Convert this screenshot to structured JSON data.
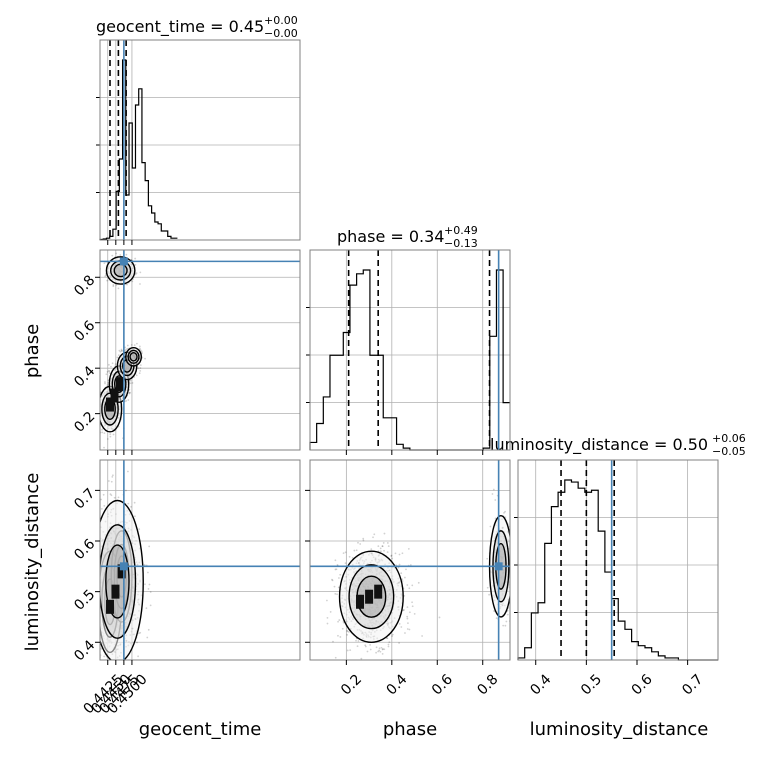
{
  "chart_data": {
    "type": "corner",
    "parameters": [
      {
        "name": "geocent_time",
        "title_main": "geocent_time = 0.45",
        "title_upper": "+0.00",
        "title_lower": "−0.00",
        "range": [
          0.4401,
          0.5021
        ],
        "truth": 0.4475,
        "quantiles": [
          0.4432,
          0.4458,
          0.4482
        ],
        "ticks": [
          0.4425,
          0.445,
          0.4475,
          0.45
        ],
        "tick_labels": [
          "0.4425",
          "0.4450",
          "0.4475",
          "0.4500"
        ],
        "hist_edges_start": 0.4401,
        "hist_bin_width": 0.001,
        "hist_counts": [
          0.3,
          0.6,
          1,
          2,
          6,
          27,
          45,
          100,
          25,
          65,
          40,
          75,
          84,
          43,
          33,
          19,
          15,
          10,
          9,
          5,
          5,
          2,
          1,
          1
        ]
      },
      {
        "name": "phase",
        "title_main": "phase = 0.34",
        "title_upper": "+0.49",
        "title_lower": "−0.13",
        "range": [
          0.04,
          0.92
        ],
        "truth": 0.87,
        "quantiles": [
          0.21,
          0.34,
          0.83
        ],
        "ticks": [
          0.2,
          0.4,
          0.6,
          0.8
        ],
        "tick_labels": [
          "0.2",
          "0.4",
          "0.6",
          "0.8"
        ],
        "hist_edges_start": 0.04,
        "hist_bin_width": 0.0293,
        "hist_counts": [
          4,
          14,
          28,
          50,
          50,
          62,
          87,
          93,
          95,
          50,
          50,
          17,
          17,
          3,
          1,
          0,
          0,
          0,
          0,
          0,
          0,
          0,
          0,
          0,
          0,
          0,
          1,
          60,
          95,
          25
        ]
      },
      {
        "name": "luminosity_distance",
        "title_main": "luminosity_distance = 0.50",
        "title_upper": "+0.06",
        "title_lower": "−0.05",
        "range": [
          0.365,
          0.76
        ],
        "truth": 0.55,
        "quantiles": [
          0.45,
          0.5,
          0.555
        ],
        "ticks": [
          0.4,
          0.5,
          0.6,
          0.7
        ],
        "tick_labels": [
          "0.4",
          "0.5",
          "0.6",
          "0.7"
        ],
        "hist_edges_start": 0.365,
        "hist_bin_width": 0.0132,
        "hist_counts": [
          1,
          6,
          23,
          28,
          57,
          75,
          82,
          88,
          87,
          84,
          82,
          83,
          63,
          43,
          30,
          19,
          15,
          9,
          7,
          6,
          4,
          2,
          1,
          1,
          0,
          0,
          0,
          0,
          0,
          0
        ]
      }
    ],
    "pairs": [
      {
        "x": "geocent_time",
        "y": "phase",
        "clusters": [
          {
            "cx": 0.4465,
            "cy": 0.83,
            "sx": 0.0022,
            "sy": 0.03,
            "n": 260
          },
          {
            "cx": 0.4432,
            "cy": 0.22,
            "sx": 0.0018,
            "sy": 0.05,
            "n": 380
          },
          {
            "cx": 0.446,
            "cy": 0.33,
            "sx": 0.0015,
            "sy": 0.04,
            "n": 340
          },
          {
            "cx": 0.4485,
            "cy": 0.41,
            "sx": 0.0015,
            "sy": 0.03,
            "n": 300
          },
          {
            "cx": 0.4505,
            "cy": 0.45,
            "sx": 0.0012,
            "sy": 0.02,
            "n": 180
          }
        ],
        "hot": [
          {
            "x": 0.4432,
            "y": 0.24
          },
          {
            "x": 0.4446,
            "y": 0.28
          },
          {
            "x": 0.4463,
            "y": 0.33
          }
        ]
      },
      {
        "x": "geocent_time",
        "y": "luminosity_distance",
        "clusters": [
          {
            "cx": 0.4432,
            "cy": 0.48,
            "sx": 0.0018,
            "sy": 0.05,
            "n": 500
          },
          {
            "cx": 0.4468,
            "cy": 0.53,
            "sx": 0.0016,
            "sy": 0.045,
            "n": 450
          },
          {
            "cx": 0.4455,
            "cy": 0.52,
            "sx": 0.004,
            "sy": 0.08,
            "n": 600
          }
        ],
        "hot": [
          {
            "x": 0.4432,
            "y": 0.47
          },
          {
            "x": 0.4468,
            "y": 0.54
          },
          {
            "x": 0.4449,
            "y": 0.5
          }
        ]
      },
      {
        "x": "phase",
        "y": "luminosity_distance",
        "clusters": [
          {
            "cx": 0.31,
            "cy": 0.49,
            "sx": 0.07,
            "sy": 0.045,
            "n": 900
          },
          {
            "cx": 0.88,
            "cy": 0.55,
            "sx": 0.025,
            "sy": 0.05,
            "n": 260
          }
        ],
        "hot": [
          {
            "x": 0.3,
            "y": 0.49
          },
          {
            "x": 0.34,
            "y": 0.5
          },
          {
            "x": 0.26,
            "y": 0.48
          }
        ]
      }
    ],
    "colors": {
      "truth": "#4682b4",
      "hist": "#000000",
      "grid": "#b0b0b0"
    }
  }
}
